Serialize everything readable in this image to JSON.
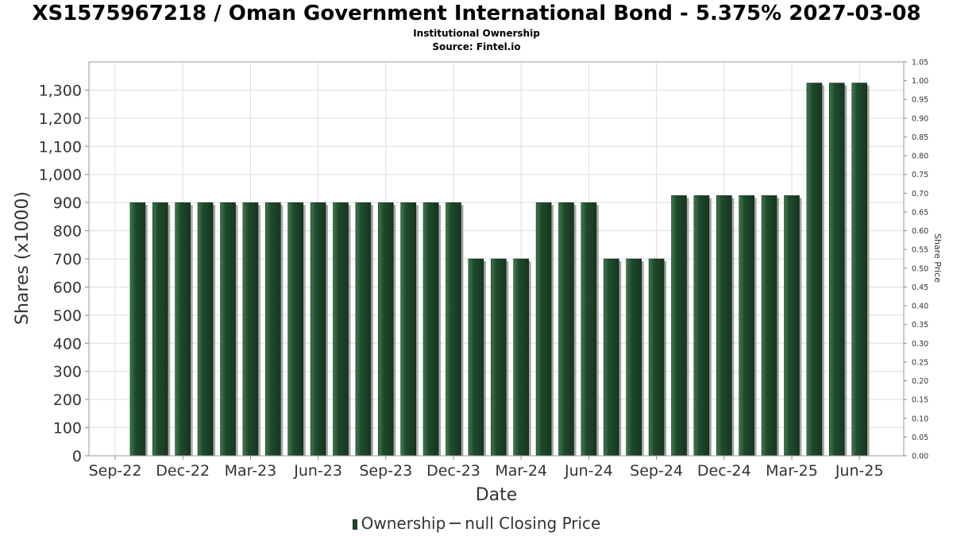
{
  "title": "XS1575967218 / Oman Government International Bond - 5.375% 2027-03-08",
  "subtitle": "Institutional Ownership",
  "source": "Source: Fintel.io",
  "legend": {
    "ownership_label": "Ownership",
    "price_label": "null Closing Price"
  },
  "colors": {
    "bar": "#1f4a2c",
    "bar_highlight": "#3f7a4e",
    "grid": "#dddddd",
    "shadow": "#8a8a8a"
  },
  "chart_data": {
    "type": "bar",
    "xlabel": "Date",
    "ylabel": "Shares (x1000)",
    "y2label": "Share Price",
    "ylim": [
      0,
      1400
    ],
    "y2lim": [
      0,
      1.05
    ],
    "yticks": [
      "0",
      "100",
      "200",
      "300",
      "400",
      "500",
      "600",
      "700",
      "800",
      "900",
      "1,000",
      "1,100",
      "1,200",
      "1,300"
    ],
    "y2ticks": [
      "0.00",
      "0.05",
      "0.10",
      "0.15",
      "0.20",
      "0.25",
      "0.30",
      "0.35",
      "0.40",
      "0.45",
      "0.50",
      "0.55",
      "0.60",
      "0.65",
      "0.70",
      "0.75",
      "0.80",
      "0.85",
      "0.90",
      "0.95",
      "1.00",
      "1.05"
    ],
    "xticks": [
      "Sep-22",
      "Dec-22",
      "Mar-23",
      "Jun-23",
      "Sep-23",
      "Dec-23",
      "Mar-24",
      "Jun-24",
      "Sep-24",
      "Dec-24",
      "Mar-25",
      "Jun-25"
    ],
    "grid": true,
    "legend_position": "bottom",
    "series": [
      {
        "name": "Ownership",
        "values": [
          900,
          900,
          900,
          900,
          900,
          900,
          900,
          900,
          900,
          900,
          900,
          900,
          900,
          900,
          900,
          700,
          700,
          700,
          900,
          900,
          900,
          700,
          700,
          700,
          925,
          925,
          925,
          925,
          925,
          925,
          1325,
          1325,
          1325
        ]
      }
    ]
  }
}
